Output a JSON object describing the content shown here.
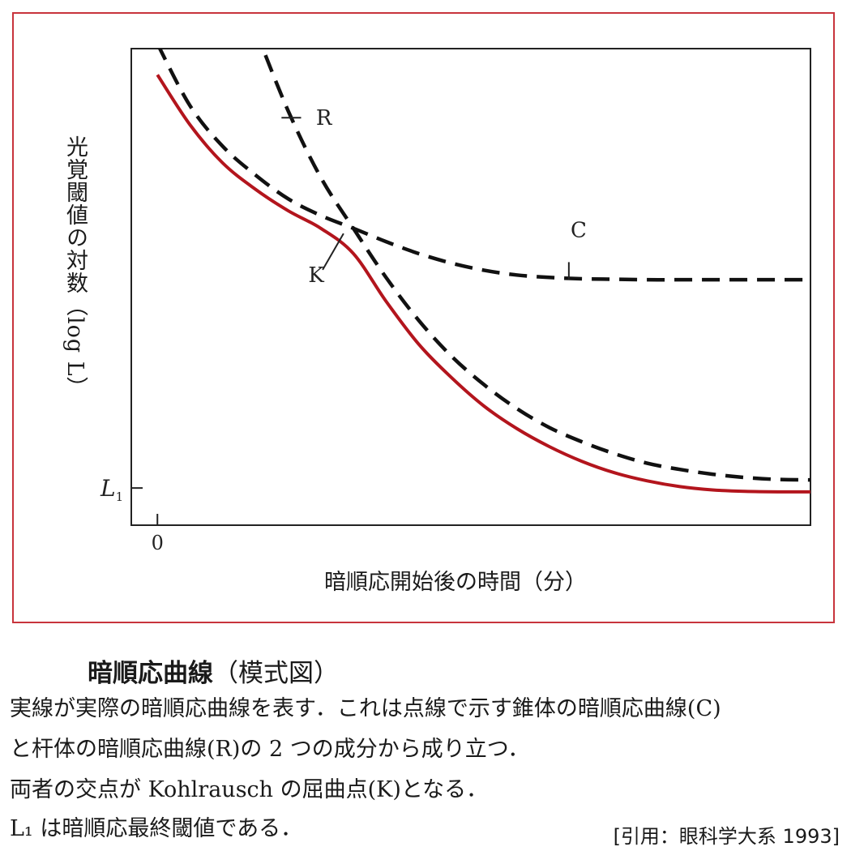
{
  "chart_data": {
    "type": "line",
    "xlabel": "暗順応開始後の時間（分）",
    "ylabel": "光覚閾値の対数（log L）",
    "x_ticks": [
      "0"
    ],
    "y_ticks": [
      "L1"
    ],
    "series": [
      {
        "name": "",
        "style": "solid",
        "color": "#b3151d",
        "x": [
          0,
          5,
          10,
          15,
          20,
          25,
          30,
          35,
          40,
          45,
          50,
          55,
          60,
          65,
          70,
          75,
          80,
          85,
          90,
          95,
          100
        ],
        "y": [
          94.5,
          84,
          76,
          70.5,
          66,
          62.3,
          57,
          47,
          38,
          31,
          25,
          20.3,
          16.5,
          13.4,
          11,
          9.3,
          8.1,
          7.4,
          7.1,
          7,
          7
        ]
      },
      {
        "name": "R",
        "style": "dashed",
        "color": "#111111",
        "x": [
          15,
          20,
          25,
          30,
          35,
          40,
          45,
          50,
          55,
          60,
          65,
          70,
          75,
          80,
          85,
          90,
          95,
          100
        ],
        "y": [
          104,
          87,
          73,
          62.3,
          52,
          43,
          35.5,
          29.5,
          24.5,
          20.5,
          17.5,
          15,
          13,
          11.7,
          10.7,
          10,
          9.6,
          9.5
        ]
      },
      {
        "name": "C",
        "style": "dashed",
        "color": "#111111",
        "x": [
          0,
          5,
          10,
          15,
          20,
          25,
          30,
          35,
          40,
          45,
          50,
          55,
          60,
          65,
          70,
          75,
          80,
          85,
          90,
          95,
          100
        ],
        "y": [
          101,
          88,
          79.5,
          73.5,
          68.5,
          65,
          62.3,
          59.5,
          57,
          55,
          53.5,
          52.5,
          52,
          51.7,
          51.6,
          51.5,
          51.5,
          51.5,
          51.5,
          51.5,
          51.5
        ]
      }
    ],
    "annotations": [
      {
        "text": "R",
        "x": 24,
        "y": 85
      },
      {
        "text": "C",
        "x": 65,
        "y": 62
      },
      {
        "text": "K",
        "x": 25,
        "y": 52
      }
    ],
    "markers": {
      "L1": 7.8,
      "zero": 0
    },
    "xlim": [
      -4,
      100
    ],
    "ylim": [
      0,
      100
    ],
    "grid": false
  },
  "caption": {
    "title_bold": "暗順応曲線",
    "title_rest": "（模式図）",
    "lines": [
      "実線が実際の暗順応曲線を表す．これは点線で示す錐体の暗順応曲線(C)",
      "と杆体の暗順応曲線(R)の 2 つの成分から成り立つ．",
      "両者の交点が Kohlrausch の屈曲点(K)となる．",
      "L₁ は暗順応最終閾値である．"
    ],
    "citation": "[引用：眼科学大系 1993]"
  },
  "colors": {
    "frame": "#c8343c",
    "solid": "#b3151d",
    "dashed": "#111111"
  }
}
